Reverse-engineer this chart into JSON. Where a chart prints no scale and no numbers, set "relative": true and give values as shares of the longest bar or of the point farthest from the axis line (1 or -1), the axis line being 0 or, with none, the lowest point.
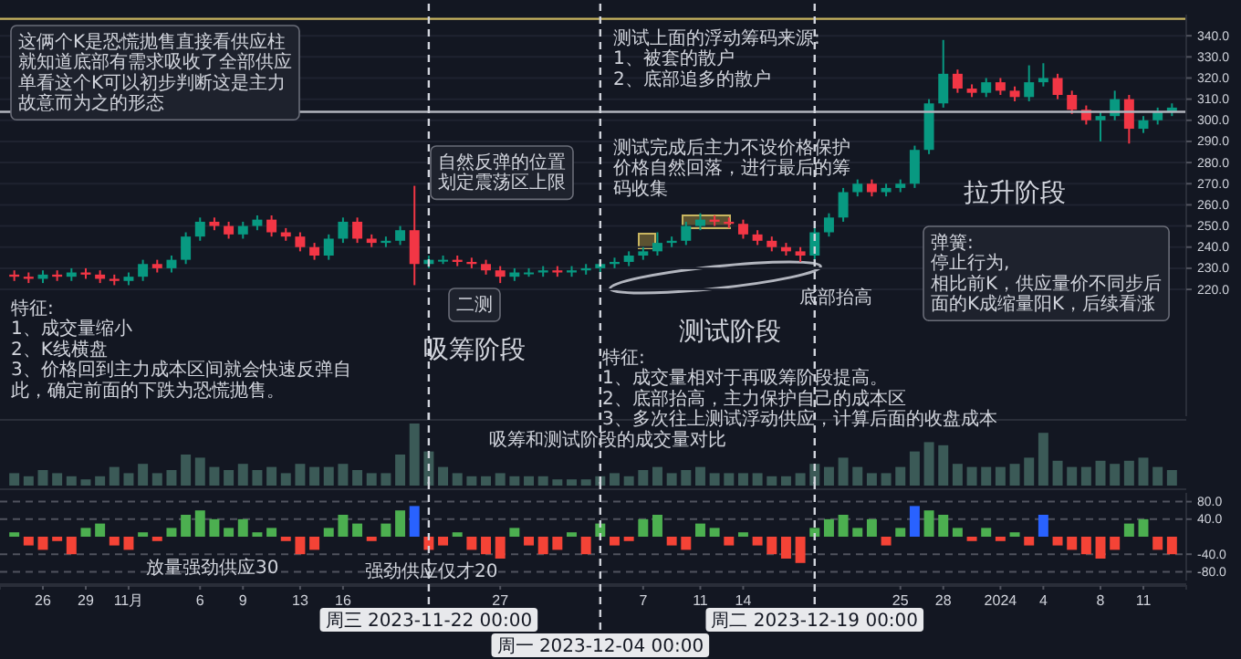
{
  "chart_data": [
    {
      "type": "candlestick",
      "tick_labels": "y",
      "grid": "y",
      "colors": [
        "#f23645",
        "#f23645",
        "#089981",
        "#f23645",
        "#089981",
        "#f23645",
        "#f23645",
        "#f23645",
        "#089981",
        "#089981",
        "#f23645",
        "#089981",
        "#089981",
        "#089981",
        "#f23645",
        "#f23645",
        "#089981",
        "#089981",
        "#f23645",
        "#f23645",
        "#f23645",
        "#f23645",
        "#089981",
        "#089981",
        "#f23645",
        "#f23645",
        "#089981",
        "#089981",
        "#f23645",
        "#089981",
        "#089981",
        "#f23645",
        "#f23645",
        "#f23645",
        "#f23645",
        "#089981",
        "#089981",
        "#089981",
        "#f23645",
        "#089981",
        "#089981",
        "#089981",
        "#089981",
        "#089981",
        "#089981",
        "#089981",
        "#089981",
        "#089981",
        "#089981",
        "#f23645",
        "#f23645",
        "#f23645",
        "#f23645",
        "#f23645",
        "#f23645",
        "#f23645",
        "#089981",
        "#089981",
        "#089981",
        "#089981",
        "#f23645",
        "#089981",
        "#089981",
        "#089981",
        "#089981",
        "#089981",
        "#f23645",
        "#f23645",
        "#089981",
        "#f23645",
        "#f23645",
        "#089981",
        "#089981",
        "#f23645",
        "#f23645",
        "#f23645",
        "#089981",
        "#089981",
        "#f23645",
        "#089981",
        "#089981",
        "#089981"
      ],
      "xlim": [
        "2023-10-23",
        "2024-01-14"
      ],
      "ylim": [
        160,
        350
      ],
      "yticks": [
        {
          "value": 220,
          "label": "220.0"
        },
        {
          "value": 230,
          "label": "230.0"
        },
        {
          "value": 240,
          "label": "240.0"
        },
        {
          "value": 250,
          "label": "250.0"
        },
        {
          "value": 260,
          "label": "260.0"
        },
        {
          "value": 270,
          "label": "270.0"
        },
        {
          "value": 280,
          "label": "280.0"
        },
        {
          "value": 290,
          "label": "290.0"
        },
        {
          "value": 300,
          "label": "300.0"
        },
        {
          "value": 310,
          "label": "310.0"
        },
        {
          "value": 320,
          "label": "320.0"
        },
        {
          "value": 330,
          "label": "330.0"
        },
        {
          "value": 340,
          "label": "340.0"
        }
      ],
      "x": [
        "2023-10-24",
        "2023-10-25",
        "2023-10-26",
        "2023-10-27",
        "2023-10-28",
        "2023-10-29",
        "2023-10-30",
        "2023-10-31",
        "2023-11-01",
        "2023-11-02",
        "2023-11-03",
        "2023-11-04",
        "2023-11-05",
        "2023-11-06",
        "2023-11-07",
        "2023-11-08",
        "2023-11-09",
        "2023-11-10",
        "2023-11-11",
        "2023-11-12",
        "2023-11-13",
        "2023-11-14",
        "2023-11-15",
        "2023-11-16",
        "2023-11-17",
        "2023-11-18",
        "2023-11-19",
        "2023-11-20",
        "2023-11-21",
        "2023-11-22",
        "2023-11-23",
        "2023-11-24",
        "2023-11-25",
        "2023-11-26",
        "2023-11-27",
        "2023-11-28",
        "2023-11-29",
        "2023-11-30",
        "2023-12-01",
        "2023-12-02",
        "2023-12-03",
        "2023-12-04",
        "2023-12-05",
        "2023-12-06",
        "2023-12-07",
        "2023-12-08",
        "2023-12-09",
        "2023-12-10",
        "2023-12-11",
        "2023-12-12",
        "2023-12-13",
        "2023-12-14",
        "2023-12-15",
        "2023-12-16",
        "2023-12-17",
        "2023-12-18",
        "2023-12-19",
        "2023-12-20",
        "2023-12-21",
        "2023-12-22",
        "2023-12-23",
        "2023-12-24",
        "2023-12-25",
        "2023-12-26",
        "2023-12-27",
        "2023-12-28",
        "2023-12-29",
        "2023-12-30",
        "2023-12-31",
        "2024-01-01",
        "2024-01-02",
        "2024-01-03",
        "2024-01-04",
        "2024-01-05",
        "2024-01-06",
        "2024-01-07",
        "2024-01-08",
        "2024-01-09",
        "2024-01-10",
        "2024-01-11",
        "2024-01-12",
        "2024-01-13"
      ],
      "ohlc": [
        [
          227,
          229,
          224,
          226
        ],
        [
          226,
          228,
          223,
          225
        ],
        [
          225,
          229,
          223,
          227
        ],
        [
          227,
          229,
          224,
          226
        ],
        [
          226,
          230,
          224,
          228
        ],
        [
          228,
          230,
          225,
          227
        ],
        [
          227,
          229,
          223,
          225
        ],
        [
          225,
          227,
          222,
          224
        ],
        [
          224,
          228,
          222,
          226
        ],
        [
          226,
          234,
          224,
          232
        ],
        [
          232,
          234,
          228,
          230
        ],
        [
          230,
          236,
          228,
          234
        ],
        [
          234,
          247,
          232,
          245
        ],
        [
          245,
          254,
          243,
          252
        ],
        [
          252,
          254,
          248,
          250
        ],
        [
          250,
          252,
          244,
          246
        ],
        [
          246,
          252,
          244,
          250
        ],
        [
          250,
          255,
          248,
          253
        ],
        [
          253,
          255,
          245,
          247
        ],
        [
          247,
          249,
          243,
          245
        ],
        [
          245,
          247,
          238,
          240
        ],
        [
          240,
          242,
          234,
          236
        ],
        [
          236,
          246,
          234,
          244
        ],
        [
          244,
          254,
          242,
          252
        ],
        [
          252,
          254,
          242,
          244
        ],
        [
          244,
          246,
          240,
          242
        ],
        [
          242,
          245,
          240,
          243
        ],
        [
          243,
          250,
          241,
          248
        ],
        [
          248,
          269,
          222,
          232
        ],
        [
          232,
          236,
          230,
          234
        ],
        [
          234,
          236,
          232,
          234
        ],
        [
          234,
          236,
          231,
          233
        ],
        [
          233,
          235,
          230,
          232
        ],
        [
          232,
          234,
          227,
          229
        ],
        [
          229,
          231,
          223,
          226
        ],
        [
          226,
          230,
          224,
          228
        ],
        [
          228,
          230,
          226,
          228
        ],
        [
          228,
          231,
          226,
          229
        ],
        [
          229,
          231,
          226,
          228
        ],
        [
          228,
          231,
          226,
          229
        ],
        [
          229,
          232,
          227,
          230
        ],
        [
          230,
          234,
          228,
          232
        ],
        [
          232,
          235,
          230,
          233
        ],
        [
          233,
          238,
          231,
          236
        ],
        [
          236,
          240,
          234,
          238
        ],
        [
          238,
          247,
          236,
          242
        ],
        [
          242,
          245,
          240,
          243
        ],
        [
          243,
          252,
          241,
          250
        ],
        [
          250,
          256,
          248,
          253
        ],
        [
          253,
          255,
          250,
          252
        ],
        [
          252,
          254,
          249,
          251
        ],
        [
          251,
          253,
          244,
          246
        ],
        [
          246,
          248,
          241,
          243
        ],
        [
          243,
          245,
          238,
          240
        ],
        [
          240,
          242,
          236,
          238
        ],
        [
          238,
          240,
          233,
          236
        ],
        [
          236,
          249,
          234,
          247
        ],
        [
          247,
          256,
          245,
          254
        ],
        [
          254,
          268,
          252,
          266
        ],
        [
          266,
          272,
          264,
          270
        ],
        [
          270,
          272,
          264,
          266
        ],
        [
          266,
          270,
          264,
          268
        ],
        [
          268,
          272,
          266,
          270
        ],
        [
          270,
          288,
          268,
          286
        ],
        [
          286,
          310,
          284,
          308
        ],
        [
          308,
          338,
          306,
          322
        ],
        [
          322,
          324,
          313,
          315
        ],
        [
          315,
          317,
          311,
          313
        ],
        [
          313,
          320,
          311,
          318
        ],
        [
          318,
          320,
          312,
          314
        ],
        [
          314,
          316,
          309,
          311
        ],
        [
          311,
          326,
          309,
          318
        ],
        [
          318,
          327,
          316,
          320
        ],
        [
          320,
          322,
          310,
          312
        ],
        [
          312,
          314,
          303,
          305
        ],
        [
          305,
          307,
          298,
          300
        ],
        [
          300,
          304,
          290,
          302
        ],
        [
          302,
          314,
          300,
          310
        ],
        [
          310,
          312,
          289,
          296
        ],
        [
          296,
          302,
          294,
          300
        ],
        [
          300,
          306,
          298,
          304
        ],
        [
          304,
          308,
          302,
          306
        ]
      ],
      "ref_lines": [
        {
          "axis": "y",
          "value": 304,
          "color": "#b2b5be",
          "line_style": "solid"
        },
        {
          "axis": "y",
          "value": 348,
          "color": "#c8b560",
          "line_style": "solid"
        },
        {
          "axis": "x",
          "value": "2023-11-22",
          "line_style": "dashed",
          "color": "#d1d4dc"
        },
        {
          "axis": "x",
          "value": "2023-12-04",
          "line_style": "dashed",
          "color": "#d1d4dc"
        },
        {
          "axis": "x",
          "value": "2023-12-19",
          "line_style": "dashed",
          "color": "#d1d4dc"
        }
      ],
      "annotations": [
        "自然反弹的位置划定震荡区上限",
        "这俩个K是恐慌抛售直接看供应柱就知道底部有需求吸收了全部供应单看这个K可以初步判断这是主力故意而为之的形态",
        "二测",
        "吸筹阶段",
        "特征:\n1、成交量缩小\n2、K线横盘\n3、价格回到主力成本区间就会快速反弹自此，确定前面的下跌为恐慌抛售。",
        "测试上面的浮动筹码来源:\n1、被套的散户\n2、底部追多的散户",
        "测试完成后主力不设价格保护价格自然回落，进行最后的筹码收集",
        "底部抬高",
        "拉升阶段",
        "测试阶段",
        "特征:\n1、成交量相对于再吸筹阶段提高。\n2、底部抬高，主力保护自己的成本区\n3、多次往上测试浮动供应，计算后面的收盘成本",
        "弹簧:\n停止行为,\n相比前K，供应量价不同步后面的K成缩量阳K，后续看涨"
      ]
    },
    {
      "type": "bar",
      "relative": true,
      "tick_labels": false,
      "color": "#3b5a57",
      "xlim": [
        "2023-10-23",
        "2024-01-14"
      ],
      "x": [
        "2023-10-24",
        "2023-10-25",
        "2023-10-26",
        "2023-10-27",
        "2023-10-28",
        "2023-10-29",
        "2023-10-30",
        "2023-10-31",
        "2023-11-01",
        "2023-11-02",
        "2023-11-03",
        "2023-11-04",
        "2023-11-05",
        "2023-11-06",
        "2023-11-07",
        "2023-11-08",
        "2023-11-09",
        "2023-11-10",
        "2023-11-11",
        "2023-11-12",
        "2023-11-13",
        "2023-11-14",
        "2023-11-15",
        "2023-11-16",
        "2023-11-17",
        "2023-11-18",
        "2023-11-19",
        "2023-11-20",
        "2023-11-21",
        "2023-11-22",
        "2023-11-23",
        "2023-11-24",
        "2023-11-25",
        "2023-11-26",
        "2023-11-27",
        "2023-11-28",
        "2023-11-29",
        "2023-11-30",
        "2023-12-01",
        "2023-12-02",
        "2023-12-03",
        "2023-12-04",
        "2023-12-05",
        "2023-12-06",
        "2023-12-07",
        "2023-12-08",
        "2023-12-09",
        "2023-12-10",
        "2023-12-11",
        "2023-12-12",
        "2023-12-13",
        "2023-12-14",
        "2023-12-15",
        "2023-12-16",
        "2023-12-17",
        "2023-12-18",
        "2023-12-19",
        "2023-12-20",
        "2023-12-21",
        "2023-12-22",
        "2023-12-23",
        "2023-12-24",
        "2023-12-25",
        "2023-12-26",
        "2023-12-27",
        "2023-12-28",
        "2023-12-29",
        "2023-12-30",
        "2023-12-31",
        "2024-01-01",
        "2024-01-02",
        "2024-01-03",
        "2024-01-04",
        "2024-01-05",
        "2024-01-06",
        "2024-01-07",
        "2024-01-08",
        "2024-01-09",
        "2024-01-10",
        "2024-01-11",
        "2024-01-12",
        "2024-01-13"
      ],
      "values": [
        0.2,
        0.15,
        0.25,
        0.2,
        0.15,
        0.1,
        0.15,
        0.3,
        0.2,
        0.35,
        0.2,
        0.25,
        0.5,
        0.45,
        0.3,
        0.25,
        0.35,
        0.25,
        0.3,
        0.2,
        0.35,
        0.3,
        0.3,
        0.35,
        0.25,
        0.2,
        0.2,
        0.5,
        1,
        0.55,
        0.3,
        0.2,
        0.15,
        0.15,
        0.2,
        0.15,
        0.15,
        0.15,
        0.1,
        0.1,
        0.1,
        0.15,
        0.2,
        0.15,
        0.25,
        0.3,
        0.2,
        0.25,
        0.3,
        0.2,
        0.2,
        0.2,
        0.2,
        0.15,
        0.15,
        0.2,
        0.35,
        0.3,
        0.45,
        0.3,
        0.2,
        0.2,
        0.3,
        0.55,
        0.7,
        0.65,
        0.35,
        0.3,
        0.3,
        0.3,
        0.35,
        0.45,
        0.85,
        0.4,
        0.3,
        0.3,
        0.4,
        0.35,
        0.4,
        0.45,
        0.3,
        0.25
      ],
      "ref_lines": [
        {
          "axis": "x",
          "value": "2023-11-22",
          "line_style": "dashed",
          "color": "#d1d4dc"
        },
        {
          "axis": "x",
          "value": "2023-12-04",
          "line_style": "dashed",
          "color": "#d1d4dc"
        },
        {
          "axis": "x",
          "value": "2023-12-19",
          "line_style": "dashed",
          "color": "#d1d4dc"
        }
      ],
      "annotations": [
        "吸筹和测试阶段的成交量对比"
      ]
    },
    {
      "type": "bar",
      "grid": "y",
      "line_style": "dashed",
      "xlim": [
        "2023-10-23",
        "2024-01-14"
      ],
      "ylim": [
        -100,
        100
      ],
      "yticks": [
        {
          "value": -80,
          "label": "-80.0"
        },
        {
          "value": -40,
          "label": "-40.0"
        },
        {
          "value": 40,
          "label": "40.0"
        },
        {
          "value": 80,
          "label": "80.0"
        }
      ],
      "xticks": [
        {
          "value": "2023-10-26",
          "label": "26"
        },
        {
          "value": "2023-10-29",
          "label": "29"
        },
        {
          "value": "2023-11-01",
          "label": "11月"
        },
        {
          "value": "2023-11-06",
          "label": "6"
        },
        {
          "value": "2023-11-09",
          "label": "9"
        },
        {
          "value": "2023-11-13",
          "label": "13"
        },
        {
          "value": "2023-11-16",
          "label": "16"
        },
        {
          "value": "2023-11-27",
          "label": "27"
        },
        {
          "value": "2023-12-07",
          "label": "7"
        },
        {
          "value": "2023-12-11",
          "label": "11"
        },
        {
          "value": "2023-12-14",
          "label": "14"
        },
        {
          "value": "2023-12-25",
          "label": "25"
        },
        {
          "value": "2023-12-28",
          "label": "28"
        },
        {
          "value": "2024-01-01",
          "label": "2024"
        },
        {
          "value": "2024-01-04",
          "label": "4"
        },
        {
          "value": "2024-01-08",
          "label": "8"
        },
        {
          "value": "2024-01-11",
          "label": "11"
        }
      ],
      "x": [
        "2023-10-24",
        "2023-10-25",
        "2023-10-26",
        "2023-10-27",
        "2023-10-28",
        "2023-10-29",
        "2023-10-30",
        "2023-10-31",
        "2023-11-01",
        "2023-11-02",
        "2023-11-03",
        "2023-11-04",
        "2023-11-05",
        "2023-11-06",
        "2023-11-07",
        "2023-11-08",
        "2023-11-09",
        "2023-11-10",
        "2023-11-11",
        "2023-11-12",
        "2023-11-13",
        "2023-11-14",
        "2023-11-15",
        "2023-11-16",
        "2023-11-17",
        "2023-11-18",
        "2023-11-19",
        "2023-11-20",
        "2023-11-21",
        "2023-11-22",
        "2023-11-23",
        "2023-11-24",
        "2023-11-25",
        "2023-11-26",
        "2023-11-27",
        "2023-11-28",
        "2023-11-29",
        "2023-11-30",
        "2023-12-01",
        "2023-12-02",
        "2023-12-03",
        "2023-12-04",
        "2023-12-05",
        "2023-12-06",
        "2023-12-07",
        "2023-12-08",
        "2023-12-09",
        "2023-12-10",
        "2023-12-11",
        "2023-12-12",
        "2023-12-13",
        "2023-12-14",
        "2023-12-15",
        "2023-12-16",
        "2023-12-17",
        "2023-12-18",
        "2023-12-19",
        "2023-12-20",
        "2023-12-21",
        "2023-12-22",
        "2023-12-23",
        "2023-12-24",
        "2023-12-25",
        "2023-12-26",
        "2023-12-27",
        "2023-12-28",
        "2023-12-29",
        "2023-12-30",
        "2023-12-31",
        "2024-01-01",
        "2024-01-02",
        "2024-01-03",
        "2024-01-04",
        "2024-01-05",
        "2024-01-06",
        "2024-01-07",
        "2024-01-08",
        "2024-01-09",
        "2024-01-10",
        "2024-01-11",
        "2024-01-12",
        "2024-01-13"
      ],
      "values": [
        10,
        -20,
        -30,
        -10,
        -40,
        20,
        30,
        -20,
        -30,
        10,
        -10,
        20,
        50,
        60,
        40,
        20,
        40,
        10,
        20,
        -10,
        -40,
        -30,
        20,
        50,
        30,
        -10,
        30,
        60,
        70,
        -30,
        -20,
        10,
        -30,
        -40,
        -50,
        20,
        -20,
        -40,
        -30,
        10,
        -40,
        30,
        -20,
        -10,
        40,
        50,
        -20,
        -30,
        30,
        20,
        -20,
        10,
        -20,
        -40,
        -50,
        -60,
        20,
        40,
        50,
        20,
        40,
        -20,
        20,
        70,
        60,
        50,
        20,
        -10,
        20,
        -10,
        10,
        -20,
        50,
        -20,
        -30,
        -40,
        -50,
        -30,
        30,
        40,
        -30,
        -40
      ],
      "colors": [
        "#4caf50",
        "#f44336",
        "#f44336",
        "#f44336",
        "#f44336",
        "#4caf50",
        "#4caf50",
        "#f44336",
        "#f44336",
        "#4caf50",
        "#f44336",
        "#4caf50",
        "#4caf50",
        "#4caf50",
        "#4caf50",
        "#4caf50",
        "#4caf50",
        "#4caf50",
        "#4caf50",
        "#f44336",
        "#f44336",
        "#f44336",
        "#4caf50",
        "#4caf50",
        "#4caf50",
        "#f44336",
        "#4caf50",
        "#4caf50",
        "#2962ff",
        "#f44336",
        "#f44336",
        "#4caf50",
        "#f44336",
        "#f44336",
        "#f44336",
        "#4caf50",
        "#f44336",
        "#f44336",
        "#f44336",
        "#4caf50",
        "#f44336",
        "#4caf50",
        "#f44336",
        "#f44336",
        "#4caf50",
        "#4caf50",
        "#f44336",
        "#f44336",
        "#4caf50",
        "#4caf50",
        "#f44336",
        "#4caf50",
        "#f44336",
        "#f44336",
        "#f44336",
        "#f44336",
        "#4caf50",
        "#4caf50",
        "#4caf50",
        "#4caf50",
        "#4caf50",
        "#f44336",
        "#4caf50",
        "#2962ff",
        "#4caf50",
        "#4caf50",
        "#4caf50",
        "#f44336",
        "#4caf50",
        "#f44336",
        "#4caf50",
        "#f44336",
        "#2962ff",
        "#f44336",
        "#f44336",
        "#f44336",
        "#f44336",
        "#f44336",
        "#4caf50",
        "#4caf50",
        "#f44336",
        "#f44336"
      ],
      "ref_lines": [
        {
          "axis": "x",
          "value": "2023-11-22",
          "line_style": "dashed",
          "color": "#d1d4dc",
          "label": "周三 2023-11-22 00:00"
        },
        {
          "axis": "x",
          "value": "2023-12-04",
          "line_style": "dashed",
          "color": "#d1d4dc",
          "label": "周一 2023-12-04 00:00"
        },
        {
          "axis": "x",
          "value": "2023-12-19",
          "line_style": "dashed",
          "color": "#d1d4dc",
          "label": "周二 2023-12-19 00:00"
        }
      ],
      "annotations": [
        "放量强劲供应30",
        "强劲供应仅才20"
      ]
    }
  ]
}
